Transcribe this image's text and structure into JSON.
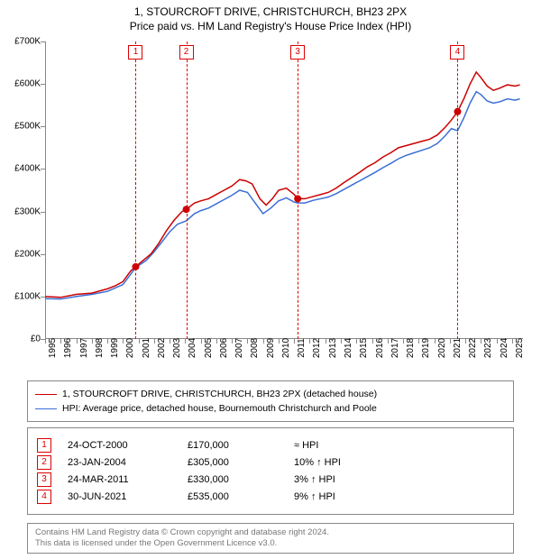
{
  "title_line1": "1, STOURCROFT DRIVE, CHRISTCHURCH, BH23 2PX",
  "title_line2": "Price paid vs. HM Land Registry's House Price Index (HPI)",
  "chart": {
    "type": "line",
    "x_range_years": [
      1995,
      2025.7
    ],
    "ylim": [
      0,
      700000
    ],
    "ytick_step": 100000,
    "ytick_labels": [
      "£0",
      "£100K",
      "£200K",
      "£300K",
      "£400K",
      "£500K",
      "£600K",
      "£700K"
    ],
    "xtick_years": [
      1995,
      1996,
      1997,
      1998,
      1999,
      2000,
      2001,
      2002,
      2003,
      2004,
      2005,
      2006,
      2007,
      2008,
      2009,
      2010,
      2011,
      2012,
      2013,
      2014,
      2015,
      2016,
      2017,
      2018,
      2019,
      2020,
      2021,
      2022,
      2023,
      2024,
      2025
    ],
    "line_width": 1.5,
    "grid_color": "#888888",
    "background_color": "#ffffff",
    "series": {
      "property": {
        "color": "#cc0000",
        "points_year_value": [
          [
            1995.0,
            100000
          ],
          [
            1996.0,
            98000
          ],
          [
            1997.0,
            105000
          ],
          [
            1998.0,
            108000
          ],
          [
            1999.0,
            118000
          ],
          [
            1999.5,
            125000
          ],
          [
            2000.0,
            135000
          ],
          [
            2000.5,
            160000
          ],
          [
            2000.82,
            170000
          ],
          [
            2001.3,
            185000
          ],
          [
            2001.8,
            200000
          ],
          [
            2002.3,
            225000
          ],
          [
            2002.8,
            255000
          ],
          [
            2003.3,
            280000
          ],
          [
            2003.8,
            300000
          ],
          [
            2004.07,
            305000
          ],
          [
            2004.6,
            320000
          ],
          [
            2005.0,
            325000
          ],
          [
            2005.5,
            330000
          ],
          [
            2006.0,
            340000
          ],
          [
            2006.5,
            350000
          ],
          [
            2007.0,
            360000
          ],
          [
            2007.5,
            375000
          ],
          [
            2007.9,
            372000
          ],
          [
            2008.3,
            365000
          ],
          [
            2008.8,
            330000
          ],
          [
            2009.2,
            315000
          ],
          [
            2009.6,
            330000
          ],
          [
            2010.0,
            350000
          ],
          [
            2010.5,
            355000
          ],
          [
            2011.0,
            340000
          ],
          [
            2011.23,
            330000
          ],
          [
            2011.7,
            330000
          ],
          [
            2012.2,
            335000
          ],
          [
            2012.7,
            340000
          ],
          [
            2013.2,
            345000
          ],
          [
            2013.7,
            355000
          ],
          [
            2014.2,
            368000
          ],
          [
            2014.7,
            380000
          ],
          [
            2015.2,
            392000
          ],
          [
            2015.7,
            405000
          ],
          [
            2016.2,
            415000
          ],
          [
            2016.7,
            428000
          ],
          [
            2017.2,
            438000
          ],
          [
            2017.7,
            450000
          ],
          [
            2018.2,
            455000
          ],
          [
            2018.7,
            460000
          ],
          [
            2019.2,
            465000
          ],
          [
            2019.7,
            470000
          ],
          [
            2020.2,
            480000
          ],
          [
            2020.7,
            498000
          ],
          [
            2021.1,
            515000
          ],
          [
            2021.5,
            535000
          ],
          [
            2021.9,
            565000
          ],
          [
            2022.3,
            600000
          ],
          [
            2022.7,
            628000
          ],
          [
            2023.0,
            615000
          ],
          [
            2023.4,
            595000
          ],
          [
            2023.8,
            585000
          ],
          [
            2024.2,
            590000
          ],
          [
            2024.7,
            598000
          ],
          [
            2025.2,
            595000
          ],
          [
            2025.5,
            598000
          ]
        ]
      },
      "hpi": {
        "color": "#3b6fd6",
        "points_year_value": [
          [
            1995.0,
            95000
          ],
          [
            1996.0,
            94000
          ],
          [
            1997.0,
            100000
          ],
          [
            1998.0,
            105000
          ],
          [
            1999.0,
            112000
          ],
          [
            2000.0,
            128000
          ],
          [
            2000.82,
            168000
          ],
          [
            2001.5,
            185000
          ],
          [
            2002.0,
            205000
          ],
          [
            2002.5,
            228000
          ],
          [
            2003.0,
            252000
          ],
          [
            2003.5,
            270000
          ],
          [
            2004.07,
            278000
          ],
          [
            2004.6,
            295000
          ],
          [
            2005.0,
            302000
          ],
          [
            2005.5,
            308000
          ],
          [
            2006.0,
            318000
          ],
          [
            2006.5,
            328000
          ],
          [
            2007.0,
            338000
          ],
          [
            2007.5,
            350000
          ],
          [
            2008.0,
            345000
          ],
          [
            2008.5,
            320000
          ],
          [
            2009.0,
            295000
          ],
          [
            2009.5,
            308000
          ],
          [
            2010.0,
            325000
          ],
          [
            2010.5,
            332000
          ],
          [
            2011.0,
            322000
          ],
          [
            2011.23,
            320000
          ],
          [
            2011.7,
            320000
          ],
          [
            2012.2,
            326000
          ],
          [
            2012.7,
            330000
          ],
          [
            2013.2,
            334000
          ],
          [
            2013.7,
            342000
          ],
          [
            2014.2,
            352000
          ],
          [
            2014.7,
            362000
          ],
          [
            2015.2,
            372000
          ],
          [
            2015.7,
            382000
          ],
          [
            2016.2,
            392000
          ],
          [
            2016.7,
            403000
          ],
          [
            2017.2,
            413000
          ],
          [
            2017.7,
            424000
          ],
          [
            2018.2,
            432000
          ],
          [
            2018.7,
            438000
          ],
          [
            2019.2,
            444000
          ],
          [
            2019.7,
            450000
          ],
          [
            2020.2,
            460000
          ],
          [
            2020.7,
            478000
          ],
          [
            2021.1,
            495000
          ],
          [
            2021.5,
            490000
          ],
          [
            2021.9,
            520000
          ],
          [
            2022.3,
            555000
          ],
          [
            2022.7,
            582000
          ],
          [
            2023.0,
            575000
          ],
          [
            2023.4,
            560000
          ],
          [
            2023.8,
            555000
          ],
          [
            2024.2,
            558000
          ],
          [
            2024.7,
            565000
          ],
          [
            2025.2,
            562000
          ],
          [
            2025.5,
            565000
          ]
        ]
      }
    },
    "sale_markers": [
      {
        "year": 2000.82,
        "value": 170000
      },
      {
        "year": 2004.07,
        "value": 305000
      },
      {
        "year": 2011.23,
        "value": 330000
      },
      {
        "year": 2021.5,
        "value": 535000
      }
    ],
    "flags": [
      {
        "num": "1",
        "year": 2000.82
      },
      {
        "num": "2",
        "year": 2004.07
      },
      {
        "num": "3",
        "year": 2011.23
      },
      {
        "num": "4",
        "year": 2021.5
      }
    ]
  },
  "legend": {
    "item1": {
      "color": "#cc0000",
      "label": "1, STOURCROFT DRIVE, CHRISTCHURCH, BH23 2PX (detached house)"
    },
    "item2": {
      "color": "#3b6fd6",
      "label": "HPI: Average price, detached house, Bournemouth Christchurch and Poole"
    }
  },
  "events": [
    {
      "num": "1",
      "date": "24-OCT-2000",
      "price": "£170,000",
      "delta": "≈ HPI"
    },
    {
      "num": "2",
      "date": "23-JAN-2004",
      "price": "£305,000",
      "delta": "10% ↑ HPI"
    },
    {
      "num": "3",
      "date": "24-MAR-2011",
      "price": "£330,000",
      "delta": "3% ↑ HPI"
    },
    {
      "num": "4",
      "date": "30-JUN-2021",
      "price": "£535,000",
      "delta": "9% ↑ HPI"
    }
  ],
  "footer": {
    "line1": "Contains HM Land Registry data © Crown copyright and database right 2024.",
    "line2": "This data is licensed under the Open Government Licence v3.0."
  }
}
